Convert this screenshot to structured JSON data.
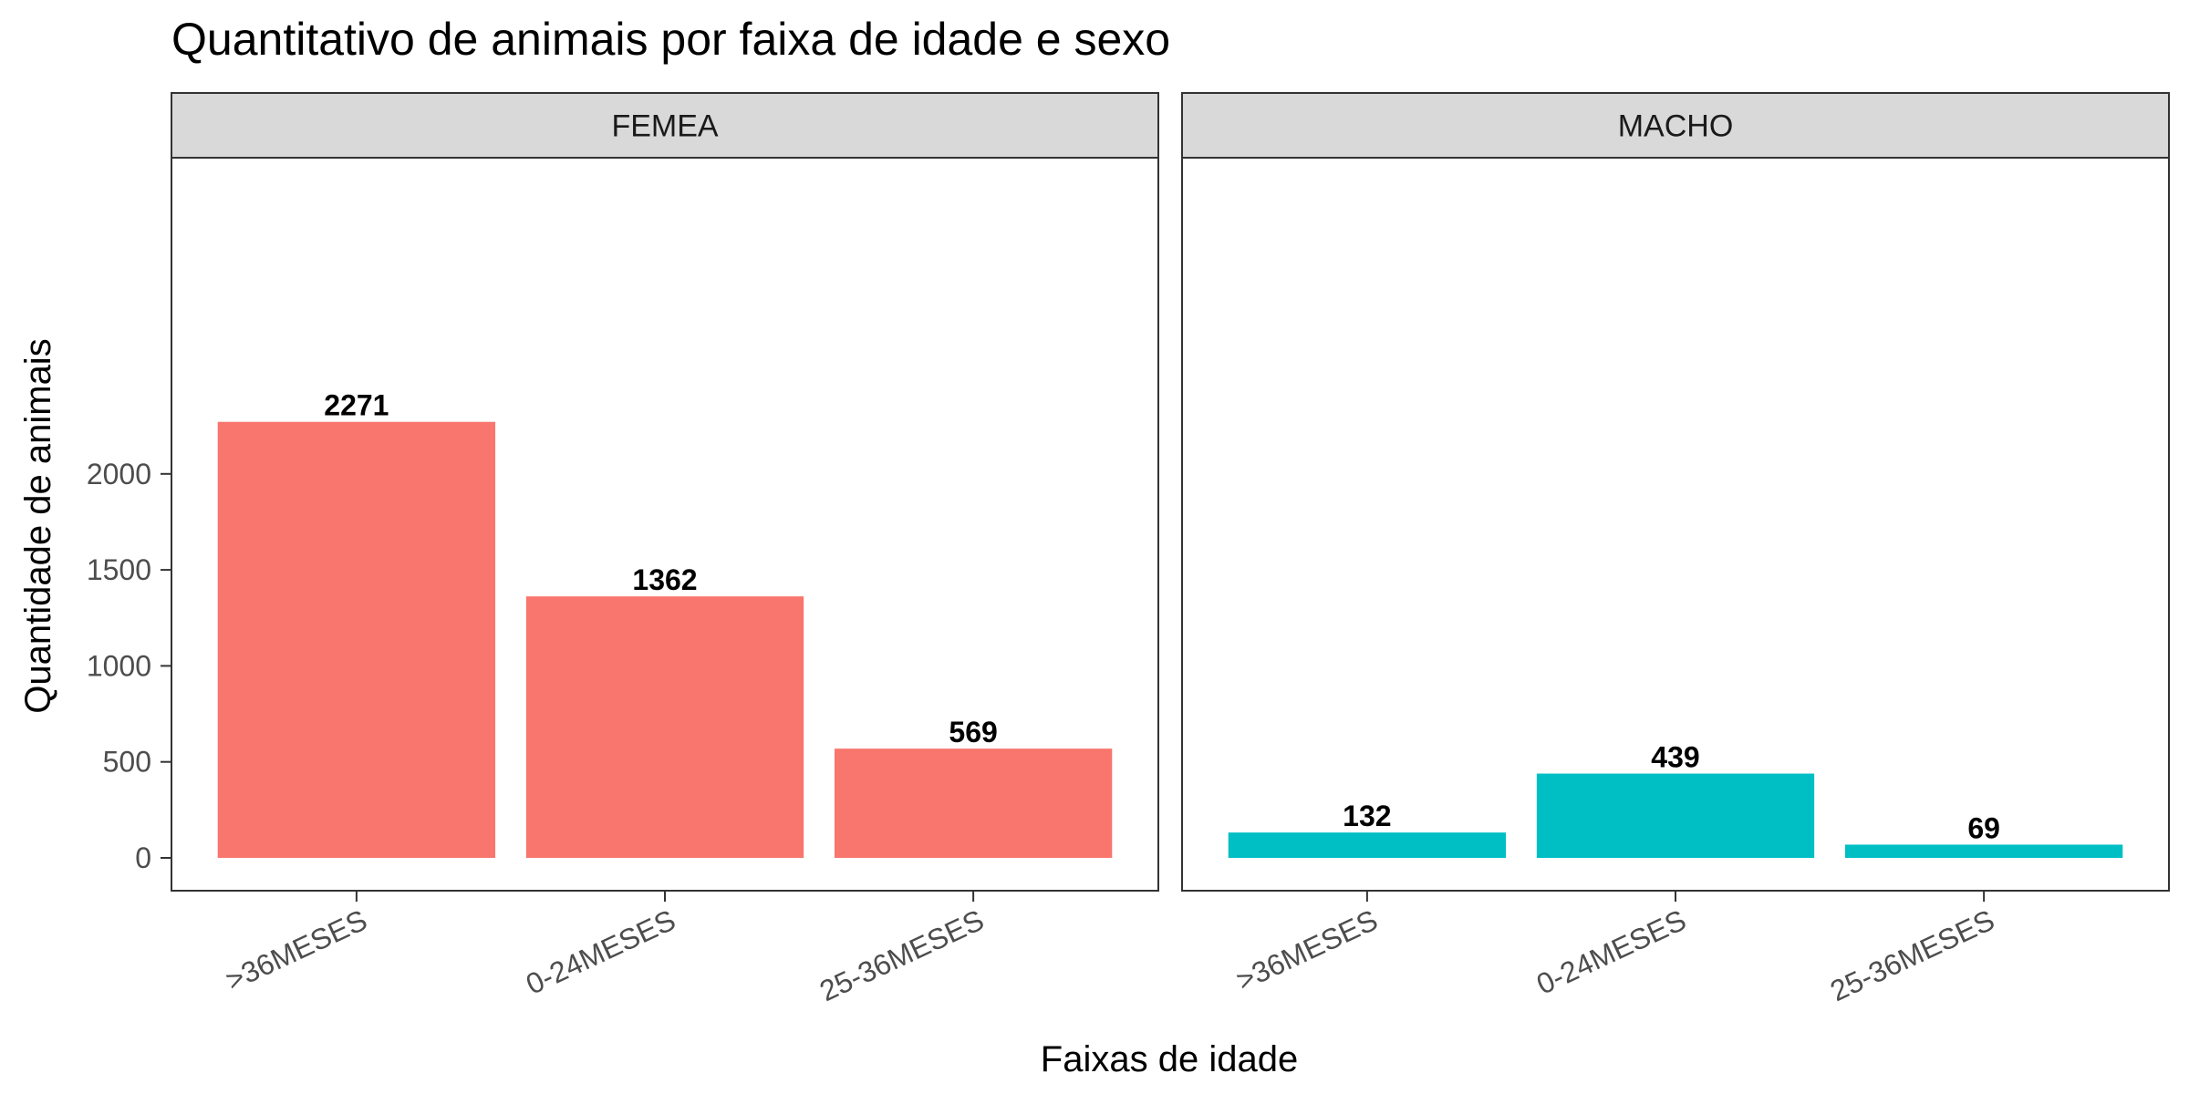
{
  "chart_data": {
    "type": "bar",
    "title": "Quantitativo de animais por faixa de idade e sexo",
    "xlabel": "Faixas de idade",
    "ylabel": "Quantidade de animais",
    "categories": [
      ">36MESES",
      "0-24MESES",
      "25-36MESES"
    ],
    "ylim": [
      0,
      2400
    ],
    "yticks": [
      0,
      500,
      1000,
      1500,
      2000
    ],
    "ytick_labels": [
      "0",
      "500",
      "1000",
      "1500",
      "2000"
    ],
    "grid": false,
    "legend": "none",
    "facets": [
      {
        "name": "FEMEA",
        "color": "#F8766D",
        "values": [
          2271,
          1362,
          569
        ],
        "labels": [
          "2271",
          "1362",
          "569"
        ]
      },
      {
        "name": "MACHO",
        "color": "#00BFC4",
        "values": [
          132,
          439,
          69
        ],
        "labels": [
          "132",
          "439",
          "69"
        ]
      }
    ]
  }
}
